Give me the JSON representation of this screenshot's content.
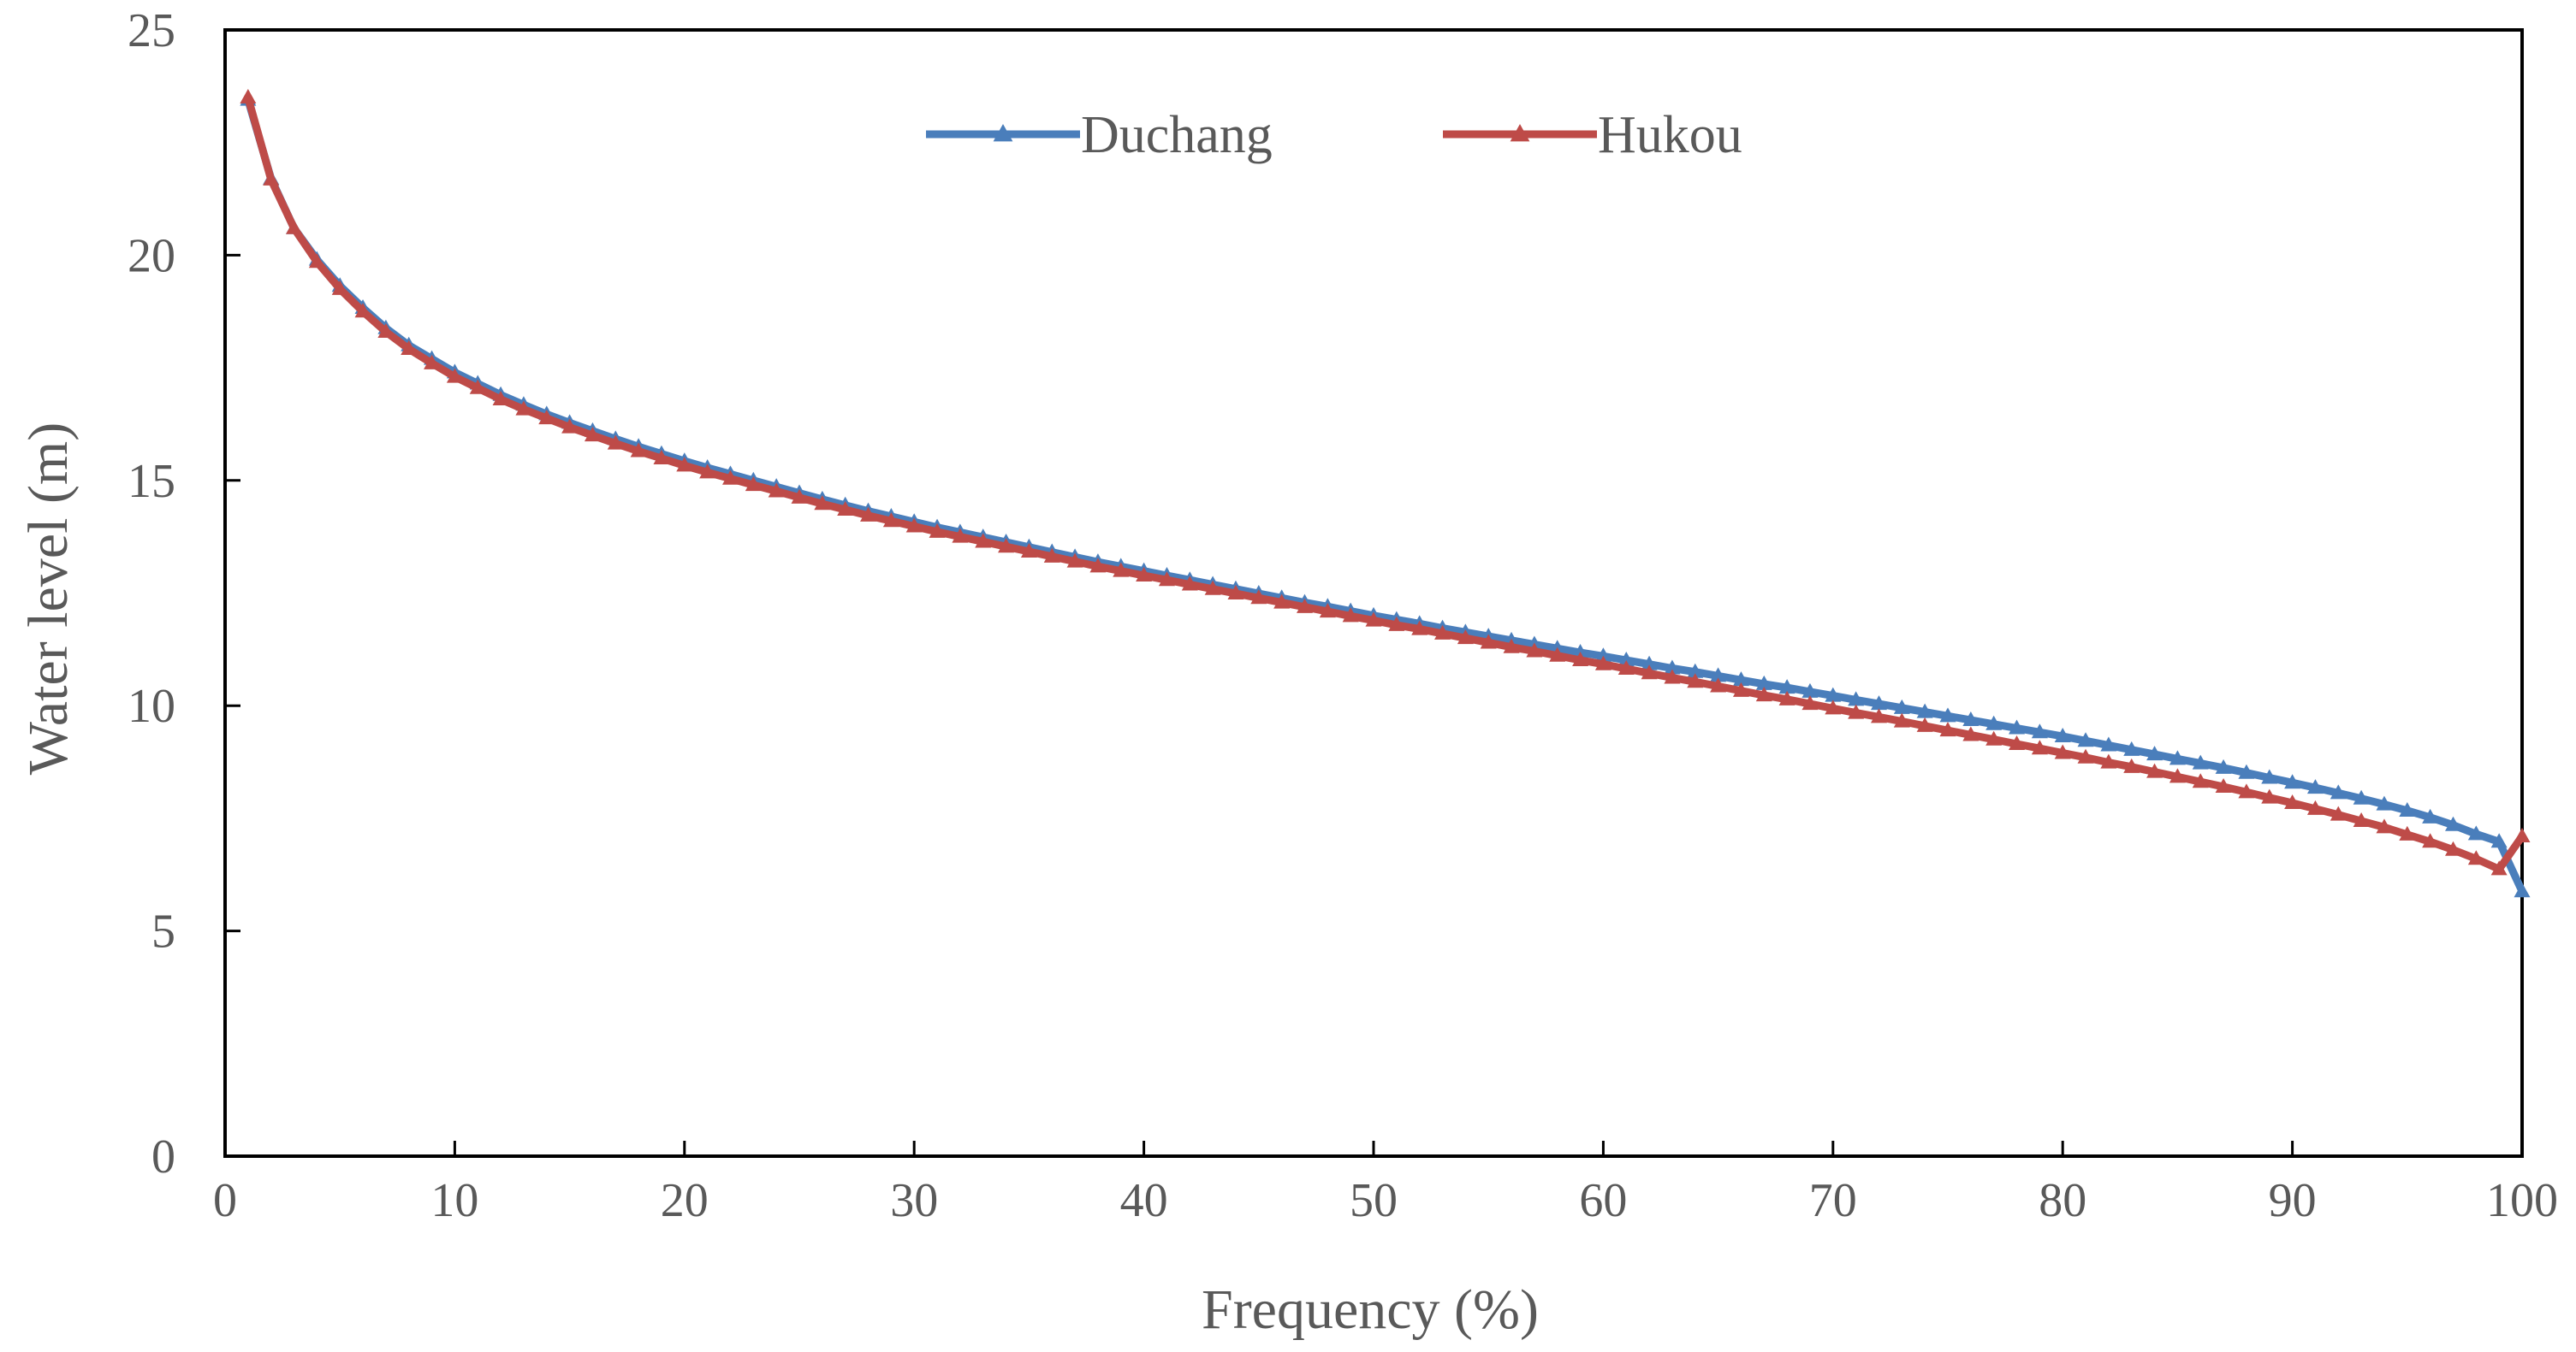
{
  "chart_data": {
    "type": "line",
    "title": "",
    "xlabel": "Frequency (%)",
    "ylabel": "Water level (m)",
    "xlim": [
      0,
      100
    ],
    "ylim": [
      0,
      25
    ],
    "xticks": [
      0,
      10,
      20,
      30,
      40,
      50,
      60,
      70,
      80,
      90,
      100
    ],
    "yticks": [
      0,
      5,
      10,
      15,
      20,
      25
    ],
    "grid": false,
    "legend_position": "top-center",
    "x": [
      1,
      2,
      3,
      4,
      5,
      6,
      7,
      8,
      9,
      10,
      11,
      12,
      13,
      14,
      15,
      16,
      17,
      18,
      19,
      20,
      21,
      22,
      23,
      24,
      25,
      26,
      27,
      28,
      29,
      30,
      31,
      32,
      33,
      34,
      35,
      36,
      37,
      38,
      39,
      40,
      41,
      42,
      43,
      44,
      45,
      46,
      47,
      48,
      49,
      50,
      51,
      52,
      53,
      54,
      55,
      56,
      57,
      58,
      59,
      60,
      61,
      62,
      63,
      64,
      65,
      66,
      67,
      68,
      69,
      70,
      71,
      72,
      73,
      74,
      75,
      76,
      77,
      78,
      79,
      80,
      81,
      82,
      83,
      84,
      85,
      86,
      87,
      88,
      89,
      90,
      91,
      92,
      93,
      94,
      95,
      96,
      97,
      98,
      99,
      100
    ],
    "series": [
      {
        "name": "Duchang",
        "color": "#4a7ebb",
        "values": [
          23.45,
          21.7,
          20.6,
          19.9,
          19.32,
          18.83,
          18.38,
          18.0,
          17.7,
          17.4,
          17.15,
          16.9,
          16.68,
          16.47,
          16.28,
          16.1,
          15.92,
          15.75,
          15.59,
          15.43,
          15.28,
          15.14,
          15.0,
          14.86,
          14.72,
          14.58,
          14.45,
          14.32,
          14.2,
          14.08,
          13.96,
          13.85,
          13.74,
          13.63,
          13.52,
          13.41,
          13.3,
          13.19,
          13.09,
          12.99,
          12.89,
          12.79,
          12.69,
          12.59,
          12.49,
          12.39,
          12.29,
          12.2,
          12.1,
          12.0,
          11.91,
          11.82,
          11.72,
          11.63,
          11.54,
          11.45,
          11.36,
          11.27,
          11.18,
          11.1,
          11.01,
          10.92,
          10.83,
          10.75,
          10.66,
          10.57,
          10.48,
          10.4,
          10.31,
          10.22,
          10.13,
          10.04,
          9.95,
          9.86,
          9.77,
          9.68,
          9.59,
          9.5,
          9.41,
          9.32,
          9.22,
          9.12,
          9.02,
          8.92,
          8.82,
          8.72,
          8.62,
          8.51,
          8.4,
          8.29,
          8.18,
          8.06,
          7.94,
          7.81,
          7.67,
          7.52,
          7.35,
          7.15,
          6.98,
          5.88
        ]
      },
      {
        "name": "Hukou",
        "color": "#be4b48",
        "values": [
          23.5,
          21.68,
          20.6,
          19.85,
          19.25,
          18.75,
          18.3,
          17.92,
          17.6,
          17.3,
          17.05,
          16.8,
          16.58,
          16.38,
          16.18,
          16.0,
          15.82,
          15.65,
          15.49,
          15.33,
          15.18,
          15.04,
          14.9,
          14.76,
          14.62,
          14.48,
          14.35,
          14.22,
          14.1,
          13.98,
          13.86,
          13.75,
          13.64,
          13.53,
          13.42,
          13.31,
          13.2,
          13.09,
          12.99,
          12.89,
          12.79,
          12.69,
          12.59,
          12.49,
          12.39,
          12.29,
          12.19,
          12.09,
          11.99,
          11.89,
          11.79,
          11.7,
          11.6,
          11.5,
          11.4,
          11.3,
          11.21,
          11.11,
          11.01,
          10.92,
          10.82,
          10.72,
          10.62,
          10.53,
          10.43,
          10.33,
          10.23,
          10.14,
          10.04,
          9.94,
          9.84,
          9.75,
          9.65,
          9.55,
          9.45,
          9.35,
          9.25,
          9.15,
          9.05,
          8.95,
          8.85,
          8.74,
          8.64,
          8.53,
          8.42,
          8.31,
          8.2,
          8.08,
          7.96,
          7.84,
          7.71,
          7.58,
          7.44,
          7.3,
          7.14,
          6.98,
          6.8,
          6.6,
          6.37,
          7.1
        ]
      }
    ]
  }
}
